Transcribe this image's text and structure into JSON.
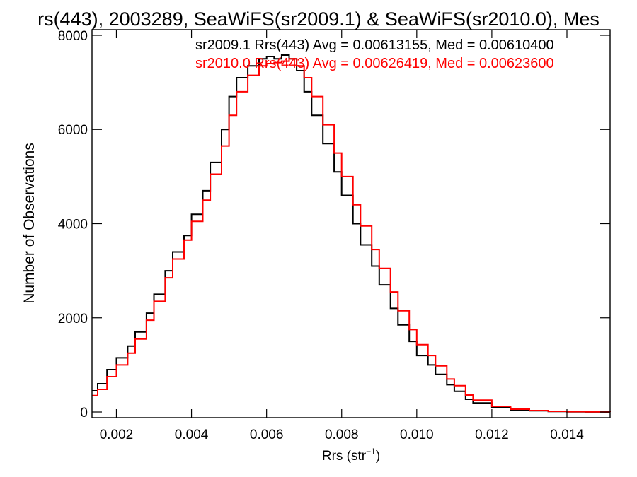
{
  "chart_data": {
    "type": "line",
    "title": "rs(443), 2003289, SeaWiFS(sr2009.1) & SeaWiFS(sr2010.0), Mes",
    "xlabel": "Rrs (str",
    "xlabel_sup": "−1",
    "xlabel_close": ")",
    "ylabel": "Number of Observations",
    "xlim": [
      0.00135,
      0.01515
    ],
    "ylim": [
      -120,
      8120
    ],
    "xticks": [
      0.002,
      0.004,
      0.006,
      0.008,
      0.01,
      0.012,
      0.014
    ],
    "xtick_labels": [
      "0.002",
      "0.004",
      "0.006",
      "0.008",
      "0.010",
      "0.012",
      "0.014"
    ],
    "yticks": [
      0,
      2000,
      4000,
      6000,
      8000
    ],
    "ytick_labels": [
      "0",
      "2000",
      "4000",
      "6000",
      "8000"
    ],
    "grid": false,
    "legend": "top-right",
    "x": [
      0.00135,
      0.0015,
      0.00175,
      0.002,
      0.0023,
      0.0025,
      0.0028,
      0.003,
      0.0033,
      0.0035,
      0.0038,
      0.004,
      0.0043,
      0.0045,
      0.0048,
      0.005,
      0.0052,
      0.0055,
      0.0058,
      0.006,
      0.0062,
      0.0064,
      0.0066,
      0.0068,
      0.007,
      0.0072,
      0.0075,
      0.0078,
      0.008,
      0.0083,
      0.0085,
      0.0088,
      0.009,
      0.0093,
      0.0095,
      0.0098,
      0.01,
      0.0103,
      0.0105,
      0.0108,
      0.011,
      0.0113,
      0.0115,
      0.012,
      0.0125,
      0.013,
      0.0135,
      0.014,
      0.0145,
      0.015,
      0.01515
    ],
    "series": [
      {
        "name": "sr2009.1 Rrs(443) Avg = 0.00613155, Med = 0.00610400",
        "color": "#000000",
        "values": [
          450,
          600,
          900,
          1150,
          1400,
          1700,
          2100,
          2500,
          3000,
          3400,
          3750,
          4200,
          4700,
          5300,
          6000,
          6700,
          7100,
          7350,
          7500,
          7550,
          7500,
          7580,
          7500,
          7250,
          6800,
          6300,
          5700,
          5100,
          4600,
          4000,
          3550,
          3100,
          2700,
          2200,
          1850,
          1500,
          1200,
          1000,
          800,
          580,
          440,
          270,
          190,
          90,
          45,
          25,
          12,
          5,
          2,
          0,
          0
        ]
      },
      {
        "name": "sr2010.0 Rrs(443) Avg = 0.00626419, Med = 0.00623600",
        "color": "#ff0000",
        "values": [
          350,
          480,
          750,
          1000,
          1250,
          1550,
          1950,
          2350,
          2850,
          3250,
          3650,
          4050,
          4500,
          5050,
          5650,
          6300,
          6800,
          7150,
          7350,
          7400,
          7420,
          7450,
          7500,
          7350,
          7100,
          6700,
          6100,
          5500,
          5000,
          4400,
          3950,
          3450,
          3050,
          2550,
          2150,
          1750,
          1430,
          1200,
          980,
          700,
          560,
          360,
          250,
          120,
          60,
          30,
          15,
          7,
          3,
          1,
          0
        ]
      }
    ]
  }
}
